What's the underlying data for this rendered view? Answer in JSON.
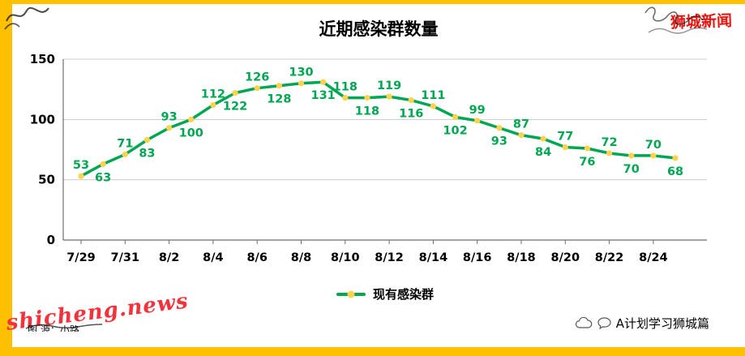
{
  "page": {
    "background": "#FFFFFF",
    "frame_color": "#FFC000"
  },
  "header": {
    "title": "近期感染群数量",
    "brand": "狮城新闻",
    "brand_color": "#E8150F"
  },
  "legend": {
    "label": "现有感染群"
  },
  "watermark": {
    "text": "shicheng.news",
    "color": "#F4323C"
  },
  "caption": {
    "text": "图 源：小路"
  },
  "footer": {
    "brand_label": "A计划学习狮城篇",
    "icons": [
      "cloud-icon",
      "chat-bubble-icon"
    ]
  },
  "chart_data": {
    "type": "line",
    "title": "近期感染群数量",
    "series_name": "现有感染群",
    "x": [
      "7/29",
      "7/30",
      "7/31",
      "8/1",
      "8/2",
      "8/3",
      "8/4",
      "8/5",
      "8/6",
      "8/7",
      "8/8",
      "8/9",
      "8/10",
      "8/11",
      "8/12",
      "8/13",
      "8/14",
      "8/15",
      "8/16",
      "8/17",
      "8/18",
      "8/19",
      "8/20",
      "8/21",
      "8/22",
      "8/23",
      "8/24",
      "8/25"
    ],
    "values": [
      53,
      63,
      71,
      83,
      93,
      100,
      112,
      122,
      126,
      128,
      130,
      131,
      118,
      118,
      119,
      116,
      111,
      102,
      99,
      93,
      87,
      84,
      77,
      76,
      72,
      70,
      70,
      68
    ],
    "x_tick_labels": [
      "7/29",
      "7/31",
      "8/2",
      "8/4",
      "8/6",
      "8/8",
      "8/10",
      "8/12",
      "8/14",
      "8/16",
      "8/18",
      "8/20",
      "8/22",
      "8/24"
    ],
    "ylim": [
      0,
      150
    ],
    "yticks": [
      0,
      50,
      100,
      150
    ],
    "grid": true,
    "legend_position": "bottom",
    "line_color": "#00A651",
    "marker_color": "#FFD34D",
    "label_color": "#00A651",
    "label_placement": "alternating-above-below"
  }
}
